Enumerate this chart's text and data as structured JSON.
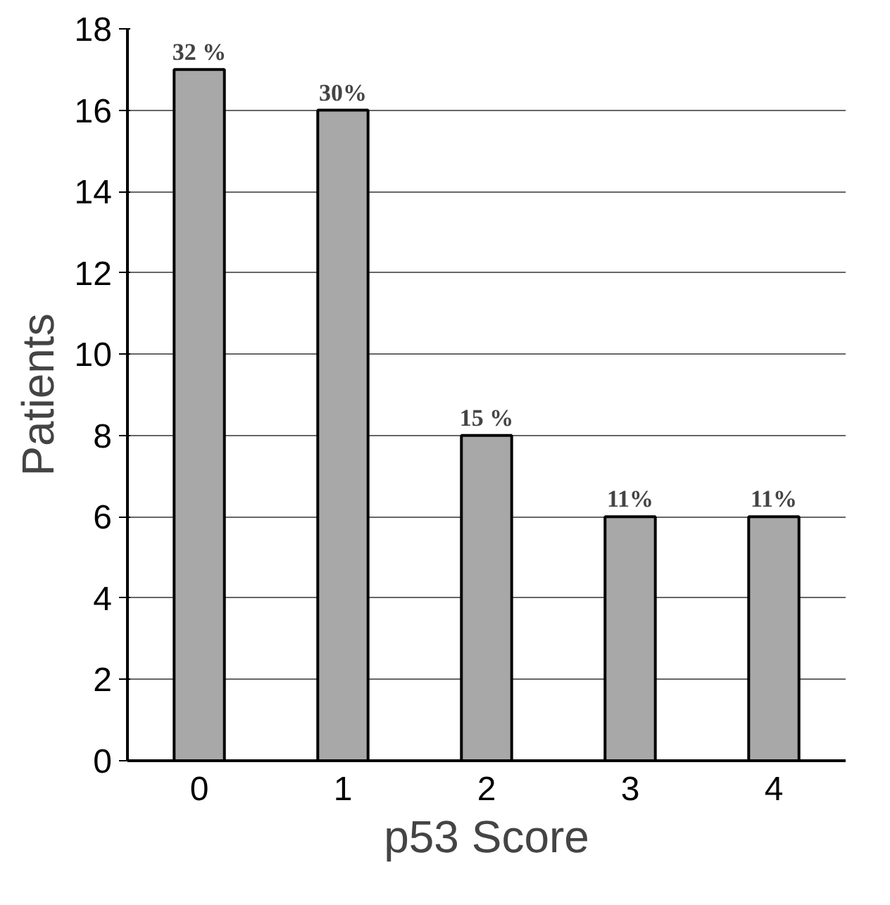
{
  "chart_data": {
    "type": "bar",
    "xlabel": "p53 Score",
    "ylabel": "Patients",
    "categories": [
      "0",
      "1",
      "2",
      "3",
      "4"
    ],
    "values": [
      17,
      16,
      8,
      6,
      6
    ],
    "annotations": [
      {
        "text": "32 %",
        "x": "0",
        "y": 17
      },
      {
        "text": "30%",
        "x": "1",
        "y": 16
      },
      {
        "text": "15 %",
        "x": "2",
        "y": 8
      },
      {
        "text": "11%",
        "x": "3",
        "y": 6
      },
      {
        "text": "11%",
        "x": "4",
        "y": 6
      }
    ],
    "color": "#a8a8a8",
    "ylim": [
      0,
      18
    ],
    "yticks": [
      0,
      2,
      4,
      6,
      8,
      10,
      12,
      14,
      16,
      18
    ],
    "grid": "y"
  }
}
